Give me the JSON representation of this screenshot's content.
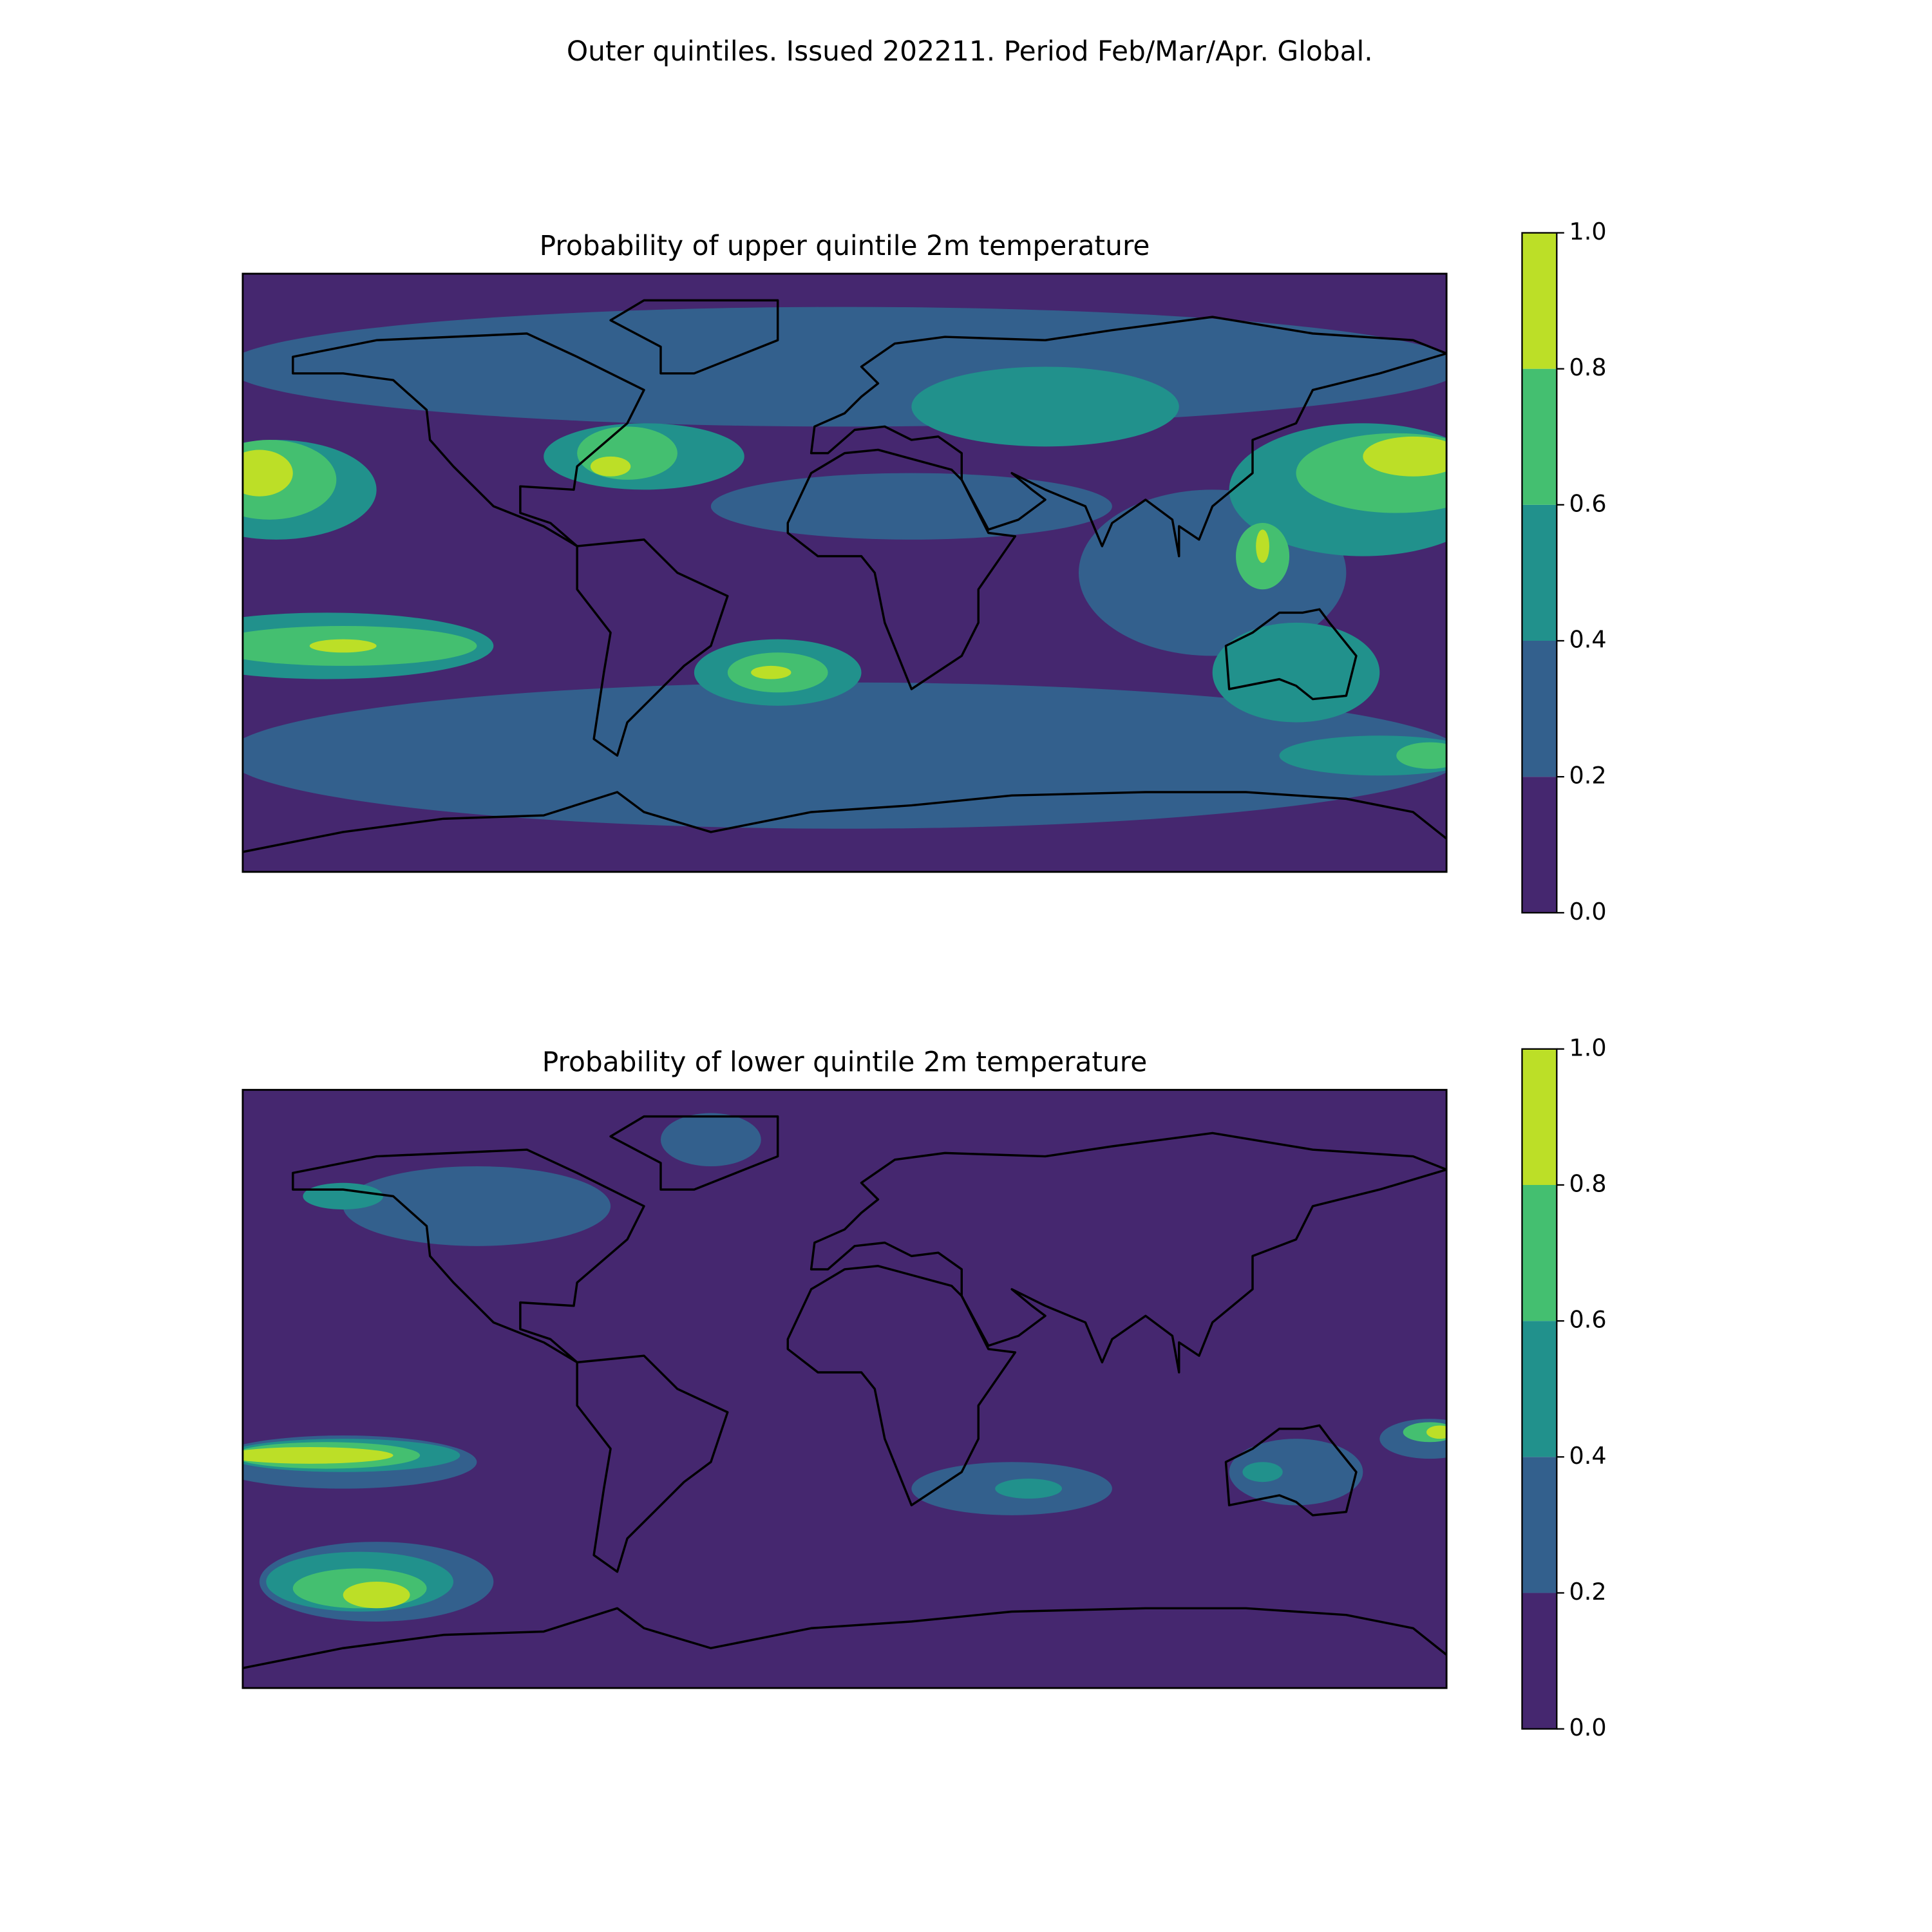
{
  "title": "Outer quintiles. Issued 202211. Period Feb/Mar/Apr. Global.",
  "chart_data": [
    {
      "type": "contourf",
      "title": "Probability of upper quintile 2m temperature",
      "clim": [
        0,
        1
      ],
      "cticks": [
        {
          "value": 0,
          "label": "0.0"
        },
        0.2,
        0.4,
        0.6,
        0.8,
        {
          "value": 1,
          "label": "1.0"
        }
      ],
      "colors": [
        "#45276f",
        "#33608d",
        "#21918c",
        "#44bf70",
        "#bcdf27"
      ]
    },
    {
      "type": "contourf",
      "title": "Probability of lower quintile 2m temperature",
      "clim": [
        0,
        1
      ],
      "cticks": [
        {
          "value": 0,
          "label": "0.0"
        },
        0.2,
        0.4,
        0.6,
        0.8,
        {
          "value": 1,
          "label": "1.0"
        }
      ],
      "colors": [
        "#45276f",
        "#33608d",
        "#21918c",
        "#44bf70",
        "#bcdf27"
      ]
    }
  ]
}
